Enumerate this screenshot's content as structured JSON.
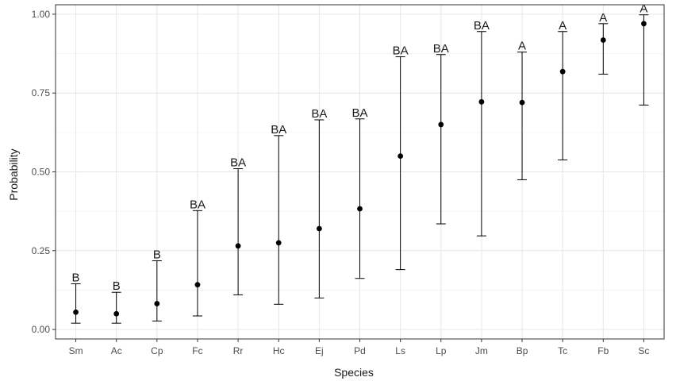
{
  "chart_data": {
    "type": "scatter",
    "xlabel": "Species",
    "ylabel": "Probability",
    "ylim": [
      -0.03,
      1.03
    ],
    "yticks": [
      0.0,
      0.25,
      0.5,
      0.75,
      1.0
    ],
    "ytick_labels": [
      "0.00",
      "0.25",
      "0.50",
      "0.75",
      "1.00"
    ],
    "grid": true,
    "categories": [
      "Sm",
      "Ac",
      "Cp",
      "Fc",
      "Rr",
      "Hc",
      "Ej",
      "Pd",
      "Ls",
      "Lp",
      "Jm",
      "Bp",
      "Tc",
      "Fb",
      "Sc"
    ],
    "values": [
      0.055,
      0.05,
      0.082,
      0.142,
      0.265,
      0.275,
      0.32,
      0.383,
      0.55,
      0.65,
      0.722,
      0.72,
      0.818,
      0.918,
      0.97
    ],
    "lower": [
      0.02,
      0.02,
      0.027,
      0.043,
      0.11,
      0.08,
      0.1,
      0.162,
      0.19,
      0.335,
      0.297,
      0.475,
      0.538,
      0.81,
      0.712
    ],
    "upper": [
      0.145,
      0.118,
      0.218,
      0.377,
      0.51,
      0.615,
      0.665,
      0.668,
      0.865,
      0.872,
      0.945,
      0.88,
      0.945,
      0.97,
      0.998
    ],
    "group_labels": [
      "B",
      "B",
      "B",
      "BA",
      "BA",
      "BA",
      "BA",
      "BA",
      "BA",
      "BA",
      "BA",
      "A",
      "A",
      "A",
      "A"
    ]
  }
}
